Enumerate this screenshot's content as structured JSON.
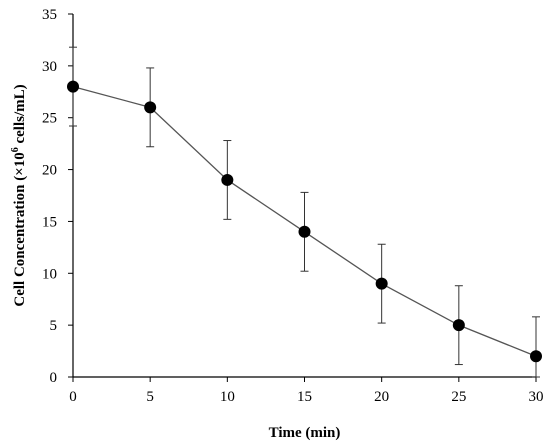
{
  "chart_data": {
    "type": "line",
    "xlabel": "Time (min)",
    "ylabel_prefix": "Cell Concentration (×10",
    "ylabel_sup": "6",
    "ylabel_suffix": " cells/mL)",
    "xlim": [
      0,
      30
    ],
    "ylim": [
      0,
      35
    ],
    "x_ticks": [
      "0",
      "5",
      "10",
      "15",
      "20",
      "25",
      "30"
    ],
    "y_ticks": [
      "0",
      "5",
      "10",
      "15",
      "20",
      "25",
      "30",
      "35"
    ],
    "grid": false,
    "series": [
      {
        "x": [
          0,
          5,
          10,
          15,
          20,
          25,
          30
        ],
        "y": [
          28,
          26,
          19,
          14,
          9,
          5,
          2
        ],
        "error": [
          3.8,
          3.8,
          3.8,
          3.8,
          3.8,
          3.8,
          3.8
        ],
        "color": "#000000",
        "line_color": "#555555"
      }
    ]
  }
}
